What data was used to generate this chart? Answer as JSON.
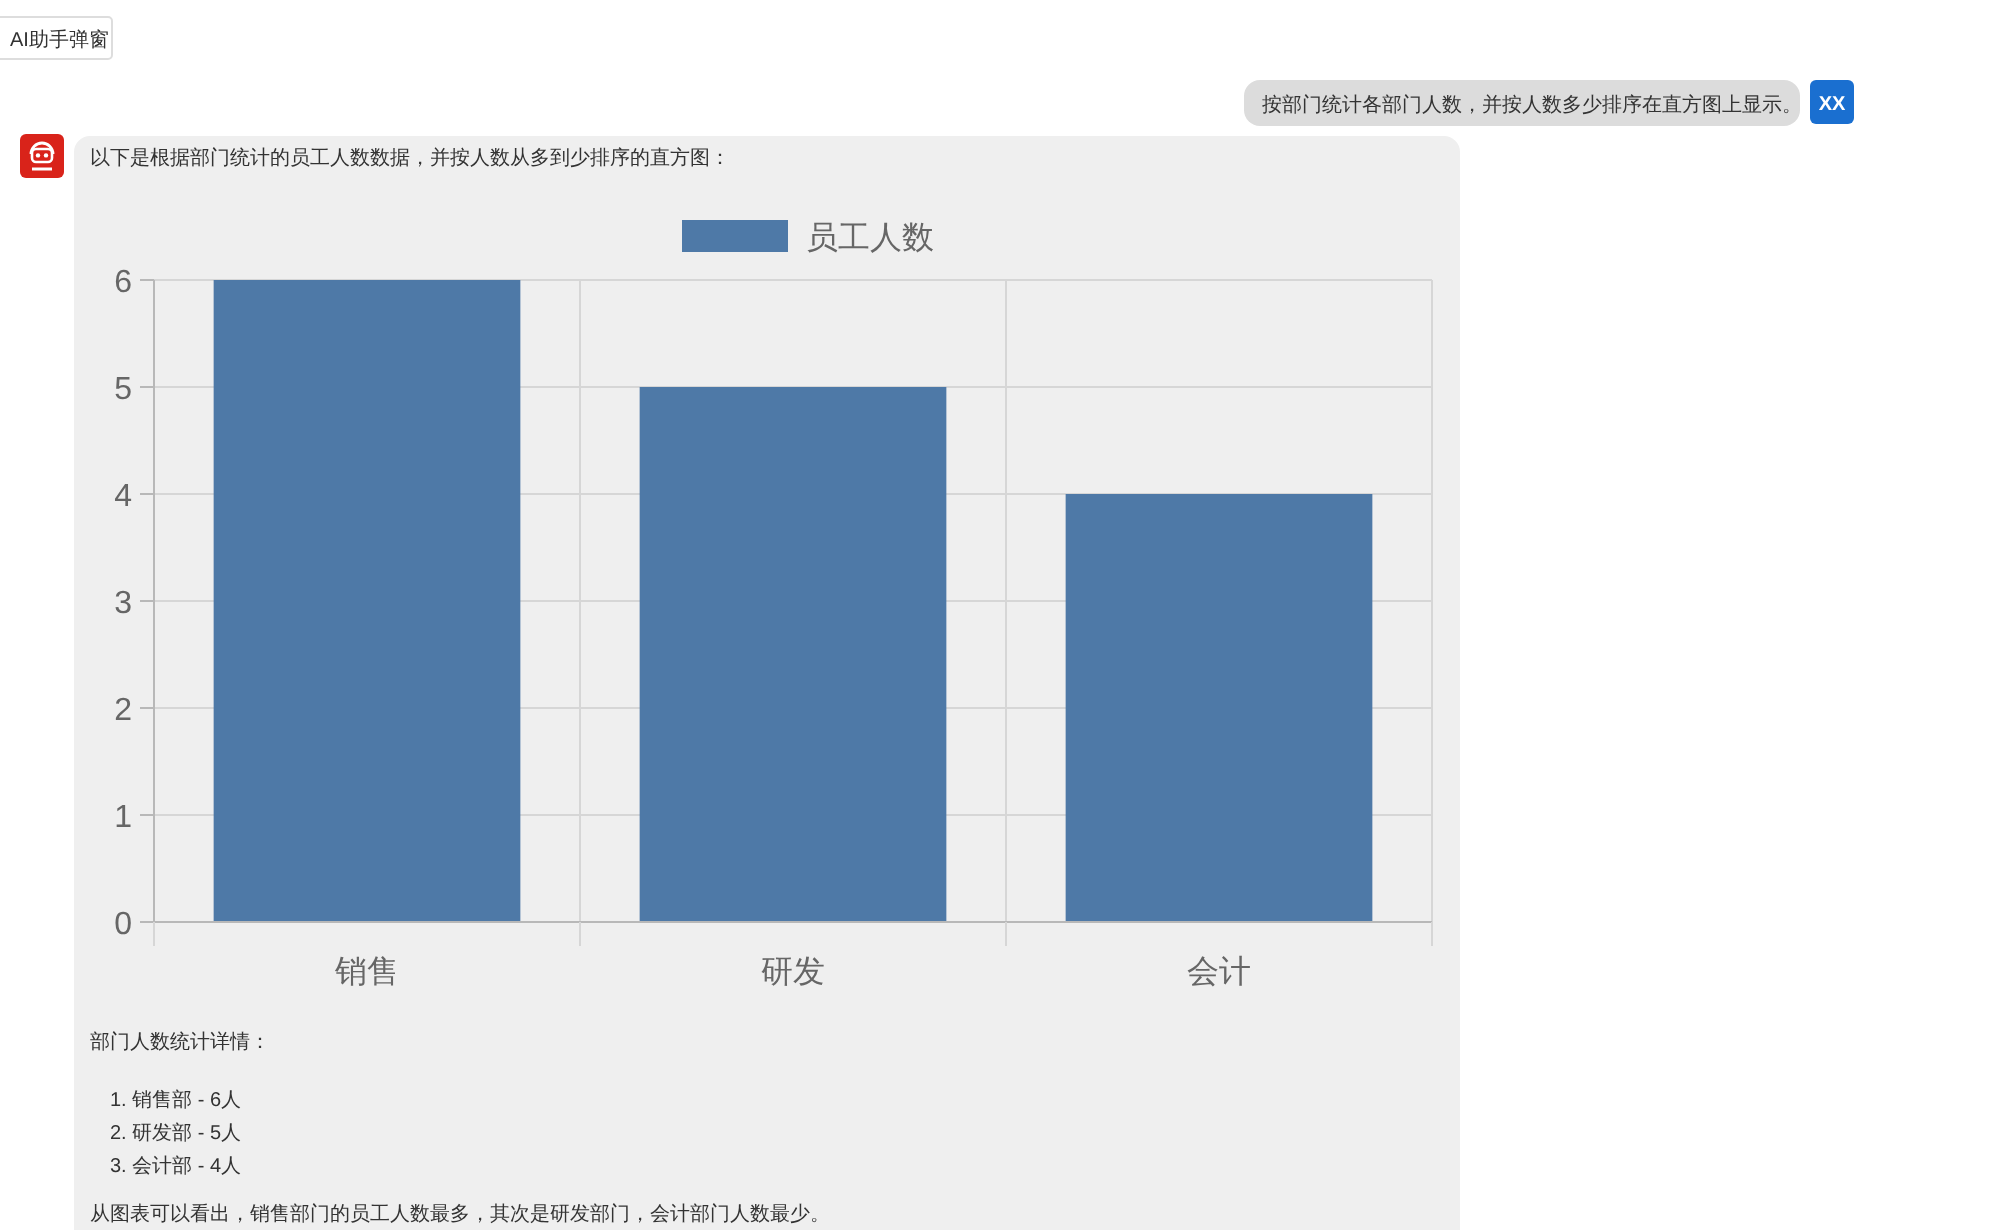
{
  "chart_data": {
    "type": "bar",
    "title": "以下是根据部门统计的员工人数数据，并按人数从多到少排序的直方图：",
    "categories": [
      "销售",
      "研发",
      "会计"
    ],
    "series": [
      {
        "name": "员工人数",
        "color": "#4e79a7",
        "values": [
          6,
          5,
          4
        ]
      }
    ],
    "ylim": [
      0,
      6
    ],
    "yticks": [
      0,
      1,
      2,
      3,
      4,
      5,
      6
    ],
    "grid": true,
    "legend": "top",
    "annotations": [
      "AI助手弹窗",
      "按部门统计各部门人数，并按人数多少排序在直方图上显示。",
      "XX",
      "部门人数统计详情：",
      "1. 销售部 - 6人",
      "2. 研发部 - 5人",
      "3. 会计部 - 4人",
      "从图表可以看出，销售部门的员工人数最多，其次是研发部门，会计部门人数最少。"
    ]
  }
}
